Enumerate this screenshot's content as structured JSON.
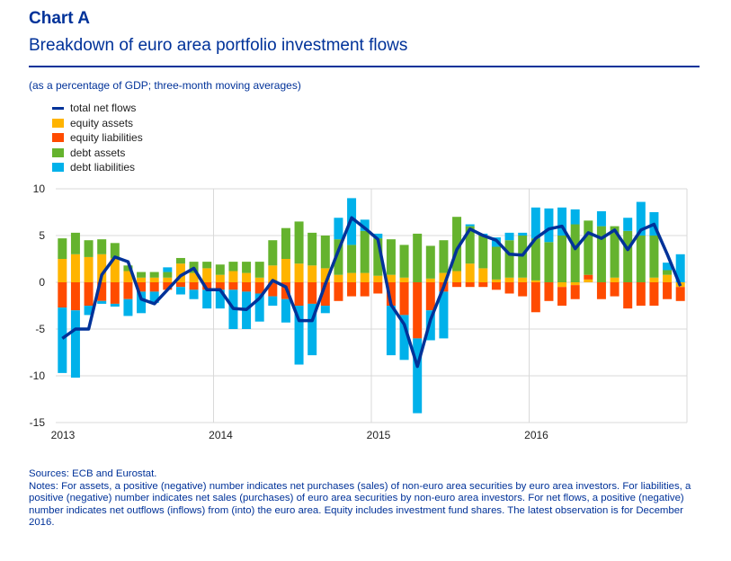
{
  "header": {
    "label": "Chart A",
    "title": "Breakdown of euro area portfolio investment flows",
    "subtitle": "(as a percentage of GDP; three-month moving averages)"
  },
  "chart_data": {
    "type": "bar",
    "stacked": true,
    "ylim": [
      -15,
      10
    ],
    "yticks": [
      "10",
      "5",
      "0",
      "-5",
      "-10",
      "-15"
    ],
    "xtick_labels": [
      "2013",
      "2014",
      "2015",
      "2016"
    ],
    "months": [
      "2013-01",
      "2013-02",
      "2013-03",
      "2013-04",
      "2013-05",
      "2013-06",
      "2013-07",
      "2013-08",
      "2013-09",
      "2013-10",
      "2013-11",
      "2013-12",
      "2014-01",
      "2014-02",
      "2014-03",
      "2014-04",
      "2014-05",
      "2014-06",
      "2014-07",
      "2014-08",
      "2014-09",
      "2014-10",
      "2014-11",
      "2014-12",
      "2015-01",
      "2015-02",
      "2015-03",
      "2015-04",
      "2015-05",
      "2015-06",
      "2015-07",
      "2015-08",
      "2015-09",
      "2015-10",
      "2015-11",
      "2015-12",
      "2016-01",
      "2016-02",
      "2016-03",
      "2016-04",
      "2016-05",
      "2016-06",
      "2016-07",
      "2016-08",
      "2016-09",
      "2016-10",
      "2016-11",
      "2016-12"
    ],
    "grid": true,
    "legend_position": "top-left",
    "series": [
      {
        "name": "total net flows",
        "kind": "line",
        "color": "#003299",
        "values": [
          -6.0,
          -5.0,
          -5.0,
          0.8,
          2.7,
          2.2,
          -1.8,
          -2.3,
          -0.8,
          0.7,
          1.5,
          -0.8,
          -0.8,
          -2.8,
          -2.9,
          -1.7,
          0.2,
          -0.5,
          -4.1,
          -4.1,
          -0.2,
          3.4,
          6.9,
          5.8,
          4.6,
          -2.4,
          -4.5,
          -9.0,
          -4.0,
          -0.5,
          3.5,
          5.7,
          5.0,
          4.5,
          3.0,
          2.9,
          4.7,
          5.7,
          6.0,
          3.6,
          5.3,
          4.7,
          5.6,
          3.5,
          5.6,
          6.2,
          3.0,
          -0.4
        ]
      },
      {
        "name": "equity assets",
        "kind": "bar",
        "color": "#ffb400",
        "values": [
          2.5,
          3.0,
          2.7,
          3.0,
          2.6,
          1.2,
          0.5,
          0.5,
          0.5,
          2.0,
          1.0,
          1.5,
          0.8,
          1.2,
          1.0,
          0.5,
          1.8,
          2.5,
          2.0,
          1.8,
          1.5,
          0.8,
          1.0,
          1.0,
          0.7,
          0.8,
          0.5,
          0.0,
          0.4,
          1.0,
          1.2,
          2.0,
          1.5,
          0.3,
          0.5,
          0.5,
          0.2,
          0.0,
          -0.5,
          -0.3,
          0.3,
          0.0,
          0.5,
          0.0,
          0.0,
          0.5,
          0.8,
          -0.5
        ]
      },
      {
        "name": "equity liabilities",
        "kind": "bar",
        "color": "#ff4b00",
        "values": [
          -2.7,
          -3.0,
          -2.5,
          -2.0,
          -2.3,
          -1.8,
          -1.0,
          -1.0,
          -0.8,
          -0.5,
          -0.8,
          -0.8,
          -0.8,
          -0.8,
          -1.0,
          -1.2,
          -1.5,
          -1.8,
          -2.5,
          -2.3,
          -2.5,
          -2.0,
          -1.5,
          -1.5,
          -1.2,
          -2.5,
          -3.5,
          -6.0,
          -3.0,
          -1.0,
          -0.5,
          -0.5,
          -0.5,
          -0.8,
          -1.2,
          -1.5,
          -3.2,
          -2.0,
          -2.0,
          -1.5,
          0.5,
          -1.8,
          -1.5,
          -2.8,
          -2.5,
          -2.5,
          -1.8,
          -1.5
        ]
      },
      {
        "name": "debt assets",
        "kind": "bar",
        "color": "#65b32e",
        "values": [
          2.2,
          2.3,
          1.8,
          1.6,
          1.6,
          0.6,
          0.6,
          0.6,
          0.6,
          0.6,
          1.2,
          0.7,
          1.1,
          1.0,
          1.2,
          1.7,
          2.7,
          3.3,
          4.5,
          3.5,
          3.5,
          3.8,
          3.0,
          4.5,
          4.0,
          3.8,
          3.5,
          5.2,
          3.5,
          3.5,
          5.8,
          4.0,
          3.5,
          3.5,
          4.0,
          4.5,
          4.5,
          4.3,
          5.0,
          6.2,
          5.8,
          6.0,
          5.5,
          5.5,
          5.0,
          4.5,
          0.5,
          0.0
        ]
      },
      {
        "name": "debt liabilities",
        "kind": "bar",
        "color": "#00b1ea",
        "values": [
          -7.0,
          -7.2,
          -1.0,
          -0.3,
          -0.3,
          -1.8,
          -2.3,
          -1.2,
          0.5,
          -0.8,
          -1.0,
          -2.0,
          -2.0,
          -4.2,
          -4.0,
          -3.0,
          -1.0,
          -2.5,
          -6.3,
          -5.5,
          -0.8,
          2.3,
          5.0,
          1.2,
          0.5,
          -5.3,
          -4.8,
          -8.0,
          -3.2,
          -5.0,
          0.0,
          0.2,
          0.2,
          1.0,
          0.8,
          0.3,
          3.3,
          3.6,
          3.0,
          1.6,
          0.0,
          1.6,
          0.0,
          1.4,
          3.6,
          2.5,
          0.8,
          3.0
        ]
      }
    ]
  },
  "footer": {
    "sources": "Sources: ECB and Eurostat.",
    "notes": "Notes: For assets, a positive (negative) number indicates net purchases (sales) of non-euro area securities by euro area investors. For liabilities, a positive (negative) number indicates net sales (purchases) of euro area securities by non-euro area investors. For net flows, a positive (negative) number indicates net outflows (inflows) from (into) the euro area. Equity includes investment fund shares. The latest observation is for December 2016."
  }
}
